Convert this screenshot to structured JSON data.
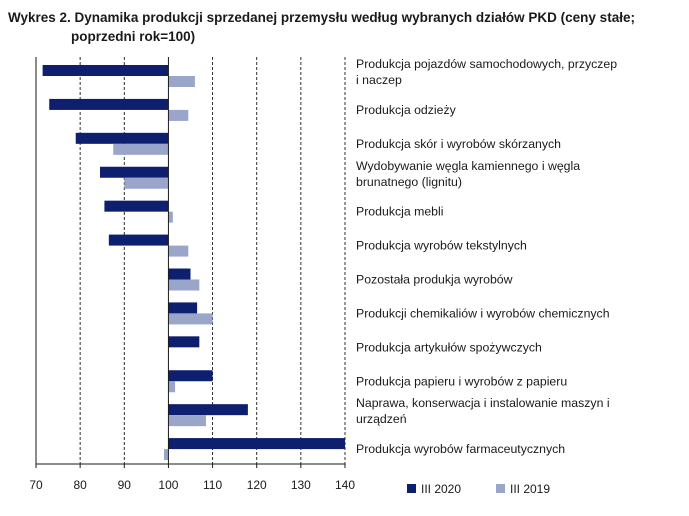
{
  "title": {
    "line1": "Wykres 2. Dynamika produkcji sprzedanej przemysłu według wybranych działów PKD (ceny stałe;",
    "line2": "poprzedni rok=100)"
  },
  "colors": {
    "series1": "#0d1f6e",
    "series2": "#9aa6c9",
    "grid": "#1a1a1a",
    "axis": "#1a1a1a"
  },
  "chart_data": {
    "type": "bar",
    "orientation": "horizontal",
    "baseline": 100,
    "xlim": [
      70,
      140
    ],
    "xticks": [
      70,
      80,
      90,
      100,
      110,
      120,
      130,
      140
    ],
    "grid": "vertical dashed",
    "legend_position": "bottom-right",
    "categories": [
      [
        "Produkcja pojazdów samochodowych, przyczep",
        "i naczep"
      ],
      [
        "Produkcja odzieży"
      ],
      [
        "Produkcja skór i wyrobów skórzanych"
      ],
      [
        "Wydobywanie węgla kamiennego i węgla",
        "brunatnego (lignitu)"
      ],
      [
        "Produkcja mebli"
      ],
      [
        "Produkcja wyrobów tekstylnych"
      ],
      [
        "Pozostała produkja wyrobów"
      ],
      [
        "Produkcji chemikaliów i wyrobów chemicznych"
      ],
      [
        "Produkcja artykułów spożywczych"
      ],
      [
        "Produkcja papieru i wyrobów z papieru"
      ],
      [
        "Naprawa, konserwacja i instalowanie maszyn i",
        "urządzeń"
      ],
      [
        "Produkcja wyrobów farmaceutycznych"
      ]
    ],
    "series": [
      {
        "name": "III 2020",
        "values": [
          71.5,
          73,
          79,
          84.5,
          85.5,
          86.5,
          105,
          106.5,
          107,
          110,
          118,
          140
        ]
      },
      {
        "name": "III 2019",
        "values": [
          106,
          104.5,
          87.5,
          90,
          101,
          104.5,
          107,
          110,
          100,
          101.5,
          108.5,
          99
        ]
      }
    ]
  }
}
